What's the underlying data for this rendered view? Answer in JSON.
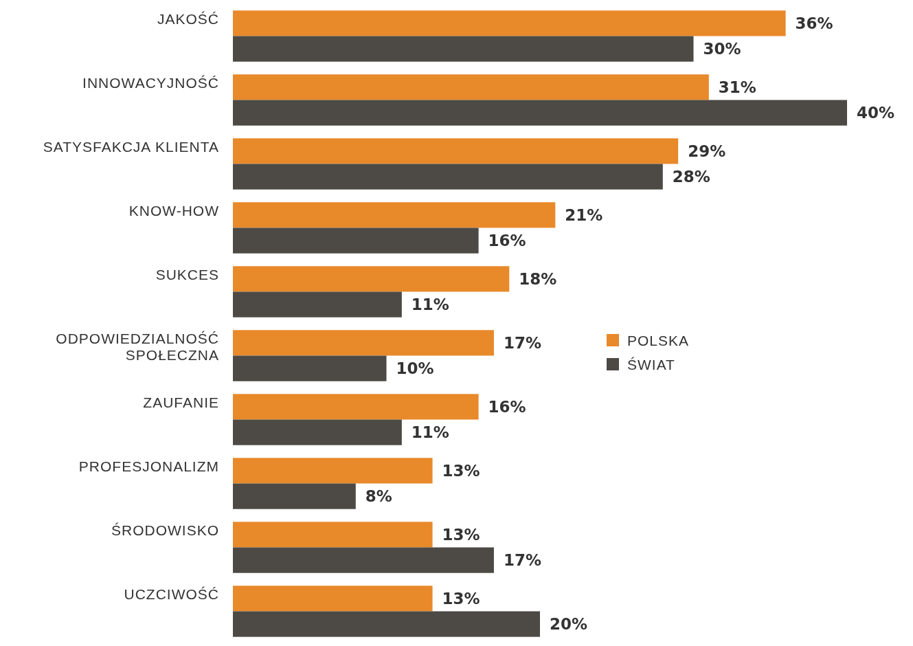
{
  "chart_data": {
    "type": "bar",
    "orientation": "horizontal",
    "categories": [
      "JAKOŚĆ",
      "INNOWACYJNOŚĆ",
      "SATYSFAKCJA KLIENTA",
      "KNOW-HOW",
      "SUKCES",
      "ODPOWIEDZIALNOŚĆ SPOŁECZNA",
      "ZAUFANIE",
      "PROFESJONALIZM",
      "ŚRODOWISKO",
      "UCZCIWOŚĆ"
    ],
    "series": [
      {
        "name": "POLSKA",
        "color": "#e8892a",
        "values": [
          36,
          31,
          29,
          21,
          18,
          17,
          16,
          13,
          13,
          13
        ],
        "value_labels": [
          "36%",
          "31%",
          "29%",
          "21%",
          "18%",
          "17%",
          "16%",
          "13%",
          "13%",
          "13%"
        ]
      },
      {
        "name": "ŚWIAT",
        "color": "#4d4a45",
        "values": [
          30,
          40,
          28,
          16,
          11,
          10,
          11,
          8,
          17,
          20
        ],
        "value_labels": [
          "30%",
          "40%",
          "28%",
          "16%",
          "11%",
          "10%",
          "11%",
          "8%",
          "17%",
          "20%"
        ]
      }
    ],
    "xlim": [
      0,
      40
    ],
    "tick_labels": "y",
    "legend": "right"
  }
}
